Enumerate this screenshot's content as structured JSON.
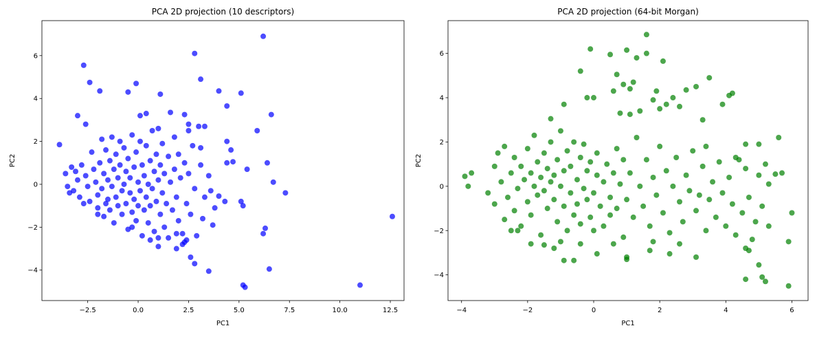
{
  "chart_data": [
    {
      "type": "scatter",
      "title": "PCA 2D projection (10 descriptors)",
      "x_label": "PC1",
      "y_label": "PC2",
      "color": "#0000ff",
      "alpha": 0.7,
      "xlim": [
        -4.77,
        13.18
      ],
      "ylim": [
        -5.42,
        7.63
      ],
      "xticks": [
        {
          "value": -2.5,
          "label": "−2.5"
        },
        {
          "value": 0,
          "label": "0.0"
        },
        {
          "value": 2.5,
          "label": "2.5"
        },
        {
          "value": 5,
          "label": "5.0"
        },
        {
          "value": 7.5,
          "label": "7.5"
        },
        {
          "value": 10,
          "label": "10.0"
        },
        {
          "value": 12.5,
          "label": "12.5"
        }
      ],
      "yticks": [
        {
          "value": -4,
          "label": "−4"
        },
        {
          "value": -2,
          "label": "−2"
        },
        0,
        2,
        4,
        6
      ],
      "x": [
        6.2,
        2.8,
        -2.7,
        -2.4,
        -0.1,
        -1.9,
        -0.5,
        1.1,
        3.1,
        4.0,
        5.1,
        4.4,
        6.6,
        1.6,
        2.3,
        -3.0,
        -2.6,
        0.1,
        0.4,
        3.0,
        3.3,
        2.5,
        5.9,
        4.4,
        4.6,
        4.7,
        4.4,
        5.4,
        6.4,
        6.7,
        7.3,
        12.6,
        11.0,
        5.2,
        5.3,
        6.5,
        6.3,
        6.2,
        5.1,
        5.2,
        3.5,
        2.8,
        2.6,
        1.0,
        1.9,
        2.2,
        4.3,
        4.0,
        3.6,
        -3.9,
        -3.6,
        -3.4,
        -3.3,
        -3.1,
        -3.0,
        -3.2,
        -2.9,
        -2.8,
        -2.6,
        -2.5,
        -2.4,
        -2.3,
        -2.2,
        -2.1,
        -2.0,
        -2.0,
        -1.9,
        -1.8,
        -1.8,
        -1.7,
        -1.7,
        -1.6,
        -1.5,
        -1.5,
        -1.4,
        -1.4,
        -1.3,
        -1.3,
        -1.2,
        -1.2,
        -1.1,
        -1.1,
        -1.0,
        -1.0,
        -0.9,
        -0.9,
        -0.8,
        -0.8,
        -0.7,
        -0.7,
        -0.6,
        -0.6,
        -0.5,
        -0.5,
        -0.4,
        -0.4,
        -0.3,
        -0.3,
        -0.2,
        -0.2,
        -0.1,
        -0.1,
        0.0,
        0.0,
        0.1,
        0.1,
        0.2,
        0.2,
        0.3,
        0.3,
        0.4,
        0.4,
        0.5,
        0.5,
        0.6,
        0.6,
        0.7,
        0.7,
        0.8,
        0.8,
        0.9,
        0.9,
        1.0,
        1.0,
        1.1,
        1.1,
        1.2,
        1.2,
        1.3,
        1.3,
        1.4,
        1.5,
        1.5,
        1.6,
        1.7,
        1.8,
        1.8,
        1.9,
        2.0,
        2.0,
        2.1,
        2.2,
        2.3,
        2.4,
        2.5,
        2.5,
        2.6,
        2.7,
        2.8,
        2.9,
        3.1,
        3.2,
        3.3,
        3.5,
        3.7,
        3.8,
        3.1,
        -2.7,
        -3.5,
        -2.0,
        -1.6,
        0.6,
        1.0,
        -0.3,
        1.9,
        2.4,
        2.3
      ],
      "values": [
        6.9,
        6.1,
        5.55,
        4.75,
        4.7,
        4.35,
        4.3,
        4.2,
        4.9,
        4.35,
        4.25,
        3.65,
        3.25,
        3.35,
        3.25,
        3.2,
        2.8,
        3.2,
        3.3,
        2.7,
        2.7,
        2.8,
        2.5,
        2.0,
        1.6,
        1.05,
        1.0,
        0.7,
        1.0,
        0.1,
        -0.4,
        -1.5,
        -4.7,
        -4.7,
        -4.8,
        -3.95,
        -2.05,
        -2.3,
        -0.8,
        -1.0,
        -4.05,
        -3.7,
        -3.4,
        -2.9,
        -3.0,
        -2.8,
        -0.8,
        -0.55,
        -0.3,
        1.85,
        0.5,
        -0.4,
        0.8,
        0.6,
        0.2,
        -0.3,
        -0.6,
        0.9,
        0.4,
        -0.1,
        -0.8,
        1.5,
        0.7,
        0.1,
        -0.5,
        -1.1,
        1.0,
        2.1,
        -0.2,
        0.5,
        -1.5,
        1.6,
        -0.7,
        0.2,
        1.1,
        -1.2,
        2.2,
        -0.1,
        0.7,
        -1.8,
        1.4,
        -0.6,
        0.3,
        -1.0,
        2.0,
        0.9,
        -0.3,
        -1.4,
        1.7,
        0.0,
        0.6,
        -0.9,
        -2.1,
        1.2,
        -0.4,
        0.3,
        -1.3,
        2.3,
        0.8,
        -0.7,
        -1.7,
        1.5,
        0.1,
        -1.0,
        2.0,
        -0.3,
        0.9,
        -2.4,
        -1.2,
        0.4,
        1.8,
        -0.6,
        -1.8,
        0.0,
        1.1,
        -1.0,
        2.5,
        -0.2,
        0.6,
        -2.2,
        -0.8,
        1.4,
        2.6,
        0.2,
        -1.4,
        0.9,
        -0.4,
        1.9,
        -2.0,
        0.5,
        -0.9,
        1.3,
        -2.5,
        0.1,
        -1.2,
        2.2,
        0.7,
        -0.6,
        1.4,
        -1.7,
        0.3,
        -2.3,
        1.0,
        -0.9,
        0.5,
        2.5,
        -1.4,
        1.8,
        -0.2,
        -2.4,
        0.9,
        -1.6,
        -0.6,
        0.4,
        -1.9,
        -1.1,
        1.7,
        -0.9,
        -0.1,
        -1.4,
        -0.9,
        -2.6,
        -2.5,
        -2.0,
        -2.3,
        -2.6,
        -2.7
      ]
    },
    {
      "type": "scatter",
      "title": "PCA 2D projection (64-bit Morgan)",
      "x_label": "PC1",
      "y_label": "PC2",
      "color": "#008000",
      "alpha": 0.7,
      "xlim": [
        -4.41,
        6.49
      ],
      "ylim": [
        -5.16,
        7.48
      ],
      "xticks": [
        {
          "value": -4,
          "label": "−4"
        },
        {
          "value": -2,
          "label": "−2"
        },
        0,
        2,
        4,
        6
      ],
      "yticks": [
        {
          "value": -4,
          "label": "−4"
        },
        {
          "value": -2,
          "label": "−2"
        },
        0,
        2,
        4,
        6
      ],
      "x": [
        1.6,
        -0.1,
        0.5,
        1.0,
        1.3,
        1.6,
        2.1,
        -0.4,
        0.7,
        3.5,
        2.8,
        3.1,
        4.1,
        4.2,
        3.9,
        2.4,
        1.9,
        1.8,
        0.6,
        1.1,
        0.9,
        1.2,
        -0.2,
        0.0,
        2.0,
        2.2,
        2.6,
        -1.3,
        -0.9,
        1.4,
        0.8,
        1.1,
        3.3,
        5.6,
        5.0,
        4.6,
        3.4,
        4.3,
        4.4,
        5.0,
        5.5,
        5.2,
        4.6,
        5.3,
        5.7,
        -3.9,
        -3.7,
        -3.8,
        6.0,
        5.9,
        5.0,
        5.1,
        5.2,
        5.9,
        4.6,
        4.6,
        4.7,
        4.8,
        3.1,
        2.3,
        1.7,
        1.0,
        1.0,
        0.1,
        -0.6,
        -0.9,
        -1.2,
        -1.5,
        -2.3,
        -3.2,
        -3.0,
        -3.0,
        -2.9,
        -2.8,
        -2.7,
        -2.7,
        -2.6,
        -2.5,
        -2.4,
        -2.4,
        -2.3,
        -2.2,
        -2.2,
        -2.1,
        -2.0,
        -2.0,
        -1.9,
        -1.9,
        -1.8,
        -1.8,
        -1.7,
        -1.7,
        -1.6,
        -1.6,
        -1.5,
        -1.5,
        -1.4,
        -1.4,
        -1.3,
        -1.3,
        -1.2,
        -1.2,
        -1.1,
        -1.1,
        -1.0,
        -1.0,
        -0.9,
        -0.9,
        -0.8,
        -0.8,
        -0.7,
        -0.7,
        -0.6,
        -0.6,
        -0.5,
        -0.5,
        -0.4,
        -0.4,
        -0.3,
        -0.3,
        -0.2,
        -0.2,
        -0.1,
        -0.1,
        0.0,
        0.0,
        0.1,
        0.1,
        0.2,
        0.3,
        0.3,
        0.4,
        0.5,
        0.5,
        0.6,
        0.7,
        0.7,
        0.8,
        0.9,
        0.9,
        1.0,
        1.1,
        1.2,
        1.3,
        1.4,
        1.5,
        1.6,
        1.7,
        1.8,
        1.9,
        2.0,
        2.1,
        2.2,
        2.3,
        2.4,
        2.5,
        2.6,
        2.7,
        2.8,
        2.9,
        3.0,
        3.1,
        3.2,
        3.3,
        3.4,
        3.5,
        3.6,
        3.7,
        3.8,
        3.9,
        4.0,
        4.1,
        4.2,
        4.3,
        4.5,
        4.7,
        4.9,
        5.1,
        5.3,
        -2.5,
        -1.9,
        -1.0,
        -0.4,
        0.6,
        1.8,
        2.6
      ],
      "values": [
        6.85,
        6.2,
        5.95,
        6.15,
        5.8,
        6.0,
        5.65,
        5.2,
        5.05,
        4.9,
        4.35,
        4.5,
        4.1,
        4.2,
        3.7,
        4.0,
        4.3,
        3.9,
        4.3,
        4.4,
        4.6,
        4.7,
        4.0,
        4.0,
        3.5,
        3.7,
        3.6,
        3.05,
        3.7,
        3.4,
        3.3,
        3.25,
        3.0,
        2.2,
        1.9,
        1.9,
        1.8,
        1.3,
        1.2,
        0.5,
        0.55,
        1.0,
        0.8,
        0.1,
        0.6,
        0.45,
        0.6,
        0.0,
        -1.2,
        -2.5,
        -3.55,
        -4.1,
        -4.3,
        -4.5,
        -4.2,
        -2.8,
        -2.9,
        -2.4,
        -3.2,
        -3.05,
        -2.9,
        -3.2,
        -3.3,
        -3.05,
        -3.35,
        -3.35,
        -2.8,
        -2.65,
        -2.0,
        -0.3,
        0.9,
        -0.8,
        1.5,
        0.2,
        -1.5,
        1.8,
        -0.5,
        0.6,
        -1.1,
        1.3,
        -0.1,
        0.9,
        -1.8,
        0.3,
        1.7,
        -0.7,
        0.6,
        -1.3,
        2.3,
        0.0,
        -0.4,
        1.1,
        0.4,
        -2.2,
        1.5,
        -0.2,
        0.8,
        -1.0,
        0.2,
        2.0,
        -0.6,
        0.5,
        -1.6,
        1.2,
        0.0,
        2.5,
        -0.9,
        0.7,
        -2.0,
        1.6,
        -0.3,
        0.9,
        -1.3,
        2.0,
        0.3,
        -0.8,
        1.3,
        -1.7,
        -0.1,
        1.9,
        -0.6,
        0.7,
        -1.4,
        1.1,
        -0.3,
        -2.0,
        0.5,
        1.5,
        -0.9,
        0.2,
        -1.8,
        1.0,
        -0.5,
        -1.3,
        0.6,
        1.7,
        -1.0,
        0.1,
        -2.3,
        1.2,
        -0.6,
        0.6,
        -1.4,
        2.2,
        0.0,
        -0.9,
        1.2,
        -1.8,
        0.4,
        -0.4,
        1.8,
        -1.2,
        0.7,
        -2.1,
        0.0,
        1.3,
        -0.7,
        -1.6,
        0.5,
        -0.2,
        1.6,
        -1.1,
        -0.4,
        0.9,
        -2.0,
        -0.6,
        0.2,
        -1.4,
        1.1,
        -0.3,
        -1.8,
        0.4,
        -0.8,
        -2.2,
        -1.2,
        -0.5,
        -1.6,
        -0.9,
        -1.8,
        -2.0,
        -2.6,
        -2.5,
        -2.6,
        -2.6,
        -2.5,
        -2.6
      ]
    }
  ]
}
